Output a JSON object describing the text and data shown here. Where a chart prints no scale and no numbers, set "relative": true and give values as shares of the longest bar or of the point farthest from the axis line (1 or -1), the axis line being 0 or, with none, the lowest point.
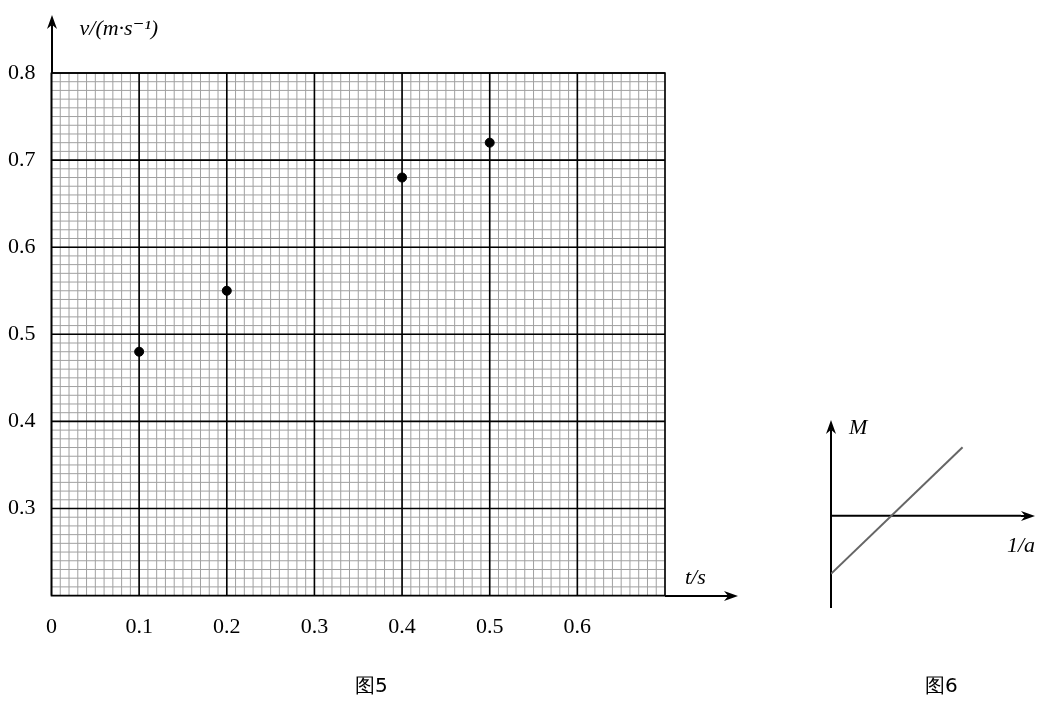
{
  "chart_data": [
    {
      "type": "scatter",
      "x": [
        0.1,
        0.2,
        0.4,
        0.5
      ],
      "values": [
        0.48,
        0.55,
        0.68,
        0.72
      ],
      "color": "#000000",
      "marker": "circle",
      "xlim": [
        0,
        0.7
      ],
      "xticks": [
        0,
        0.1,
        0.2,
        0.3,
        0.4,
        0.5,
        0.6
      ],
      "ylim": [
        0.2,
        0.8
      ],
      "yticks": [
        0.3,
        0.4,
        0.5,
        0.6,
        0.7,
        0.8
      ],
      "xlabel": "t/s",
      "ylabel": "v/(m·s⁻¹)",
      "grid": true,
      "annotations": [
        "图5"
      ]
    },
    {
      "type": "line",
      "categories": [
        null,
        null
      ],
      "values": [
        -0.85,
        1
      ],
      "color": "#666666",
      "relative": true,
      "marker": "none",
      "xlabel": "1/a",
      "ylabel": "M",
      "annotations": [
        "图6"
      ]
    }
  ]
}
